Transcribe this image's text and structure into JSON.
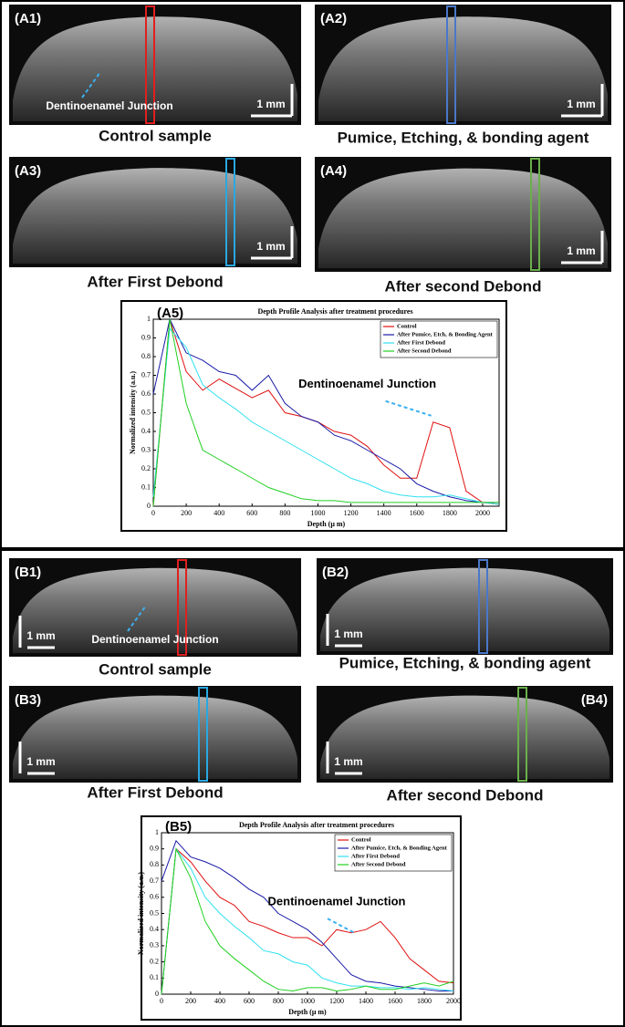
{
  "panels": [
    {
      "id": "(A1)",
      "caption": "Control sample",
      "scale": "1 mm",
      "annotation": "Dentinoenamel Junction",
      "roi": "#e02020"
    },
    {
      "id": "(A2)",
      "caption": "Pumice, Etching, & bonding agent",
      "scale": "1 mm",
      "roi": "#4a78c8"
    },
    {
      "id": "(A3)",
      "caption": "After First Debond",
      "scale": "1 mm",
      "roi": "#2aa8e0"
    },
    {
      "id": "(A4)",
      "caption": "After second Debond",
      "scale": "1 mm",
      "roi": "#6ab04a"
    },
    {
      "id": "(B1)",
      "caption": "Control sample",
      "scale": "1 mm",
      "annotation": "Dentinoenamel Junction",
      "roi": "#e02020"
    },
    {
      "id": "(B2)",
      "caption": "Pumice, Etching, & bonding agent",
      "scale": "1 mm",
      "roi": "#4a78c8"
    },
    {
      "id": "(B3)",
      "caption": "After First Debond",
      "scale": "1 mm",
      "roi": "#2aa8e0"
    },
    {
      "id": "(B4)",
      "caption": "After second Debond",
      "scale": "1 mm",
      "roi": "#6ab04a"
    }
  ],
  "chart_data": [
    {
      "type": "line",
      "panel": "(A5)",
      "title": "Depth Profile Analysis after treatment procedures",
      "xlabel": "Depth (μ m)",
      "ylabel": "Normalized intensity (a.u.)",
      "annotation": "Dentinoenamel Junction",
      "legend": "upper right",
      "x": [
        0,
        100,
        200,
        300,
        400,
        500,
        600,
        700,
        800,
        900,
        1000,
        1100,
        1200,
        1300,
        1400,
        1500,
        1600,
        1700,
        1800,
        1900,
        2000,
        2100
      ],
      "xlim": [
        0,
        2100
      ],
      "xticks": [
        0,
        200,
        400,
        600,
        800,
        1000,
        1200,
        1400,
        1600,
        1800,
        2000
      ],
      "ylim": [
        0,
        1
      ],
      "yticks": [
        0,
        0.1,
        0.2,
        0.3,
        0.4,
        0.5,
        0.6,
        0.7,
        0.8,
        0.9,
        1
      ],
      "series": [
        {
          "name": "Control",
          "color": "#e01010",
          "values": [
            0,
            1.0,
            0.72,
            0.62,
            0.68,
            0.63,
            0.58,
            0.62,
            0.5,
            0.48,
            0.45,
            0.4,
            0.38,
            0.32,
            0.22,
            0.15,
            0.15,
            0.45,
            0.42,
            0.08,
            0.02,
            0.01
          ]
        },
        {
          "name": "After Pumice, Etch, & Bonding Agent",
          "color": "#1a1aa8",
          "values": [
            0.6,
            1.0,
            0.82,
            0.78,
            0.72,
            0.7,
            0.62,
            0.7,
            0.55,
            0.48,
            0.45,
            0.38,
            0.35,
            0.3,
            0.25,
            0.2,
            0.12,
            0.08,
            0.05,
            0.03,
            0.02,
            0.02
          ]
        },
        {
          "name": "After First Debond",
          "color": "#30e0f0",
          "values": [
            0.05,
            0.95,
            0.85,
            0.65,
            0.58,
            0.52,
            0.45,
            0.4,
            0.35,
            0.3,
            0.25,
            0.2,
            0.15,
            0.12,
            0.08,
            0.06,
            0.05,
            0.05,
            0.06,
            0.04,
            0.02,
            0.01
          ]
        },
        {
          "name": "After Second Debond",
          "color": "#20d020",
          "values": [
            0,
            1.0,
            0.55,
            0.3,
            0.25,
            0.2,
            0.15,
            0.1,
            0.07,
            0.04,
            0.03,
            0.03,
            0.02,
            0.02,
            0.02,
            0.02,
            0.02,
            0.02,
            0.02,
            0.02,
            0.02,
            0.02
          ]
        }
      ]
    },
    {
      "type": "line",
      "panel": "(B5)",
      "title": "Depth Profile Analysis after treatment procedures",
      "xlabel": "Depth (μ m)",
      "ylabel": "Normalized intensity (a.u.)",
      "annotation": "Dentinoenamel Junction",
      "legend": "upper right",
      "x": [
        0,
        100,
        200,
        300,
        400,
        500,
        600,
        700,
        800,
        900,
        1000,
        1100,
        1200,
        1300,
        1400,
        1500,
        1600,
        1700,
        1800,
        1900,
        2000
      ],
      "xlim": [
        0,
        2000
      ],
      "xticks": [
        0,
        200,
        400,
        600,
        800,
        1000,
        1200,
        1400,
        1600,
        1800,
        2000
      ],
      "ylim": [
        0,
        1
      ],
      "yticks": [
        0,
        0.1,
        0.2,
        0.3,
        0.4,
        0.5,
        0.6,
        0.7,
        0.8,
        0.9,
        1
      ],
      "series": [
        {
          "name": "Control",
          "color": "#e01010",
          "values": [
            0,
            0.9,
            0.82,
            0.7,
            0.6,
            0.55,
            0.45,
            0.42,
            0.38,
            0.35,
            0.35,
            0.3,
            0.4,
            0.38,
            0.4,
            0.45,
            0.35,
            0.22,
            0.15,
            0.08,
            0.07
          ]
        },
        {
          "name": "After Pumice, Etch, & Bonding Agent",
          "color": "#1a1aa8",
          "values": [
            0.7,
            0.95,
            0.85,
            0.82,
            0.78,
            0.72,
            0.65,
            0.6,
            0.5,
            0.45,
            0.4,
            0.32,
            0.22,
            0.12,
            0.08,
            0.07,
            0.05,
            0.04,
            0.03,
            0.02,
            0.02
          ]
        },
        {
          "name": "After First Debond",
          "color": "#30e0f0",
          "values": [
            0,
            0.9,
            0.78,
            0.6,
            0.5,
            0.42,
            0.35,
            0.27,
            0.25,
            0.2,
            0.18,
            0.1,
            0.07,
            0.05,
            0.05,
            0.04,
            0.04,
            0.03,
            0.04,
            0.03,
            0.02
          ]
        },
        {
          "name": "After Second Debond",
          "color": "#20d020",
          "values": [
            0,
            0.9,
            0.72,
            0.45,
            0.3,
            0.22,
            0.15,
            0.08,
            0.03,
            0.02,
            0.04,
            0.04,
            0.02,
            0.03,
            0.05,
            0.03,
            0.03,
            0.05,
            0.07,
            0.05,
            0.08
          ]
        }
      ]
    }
  ]
}
